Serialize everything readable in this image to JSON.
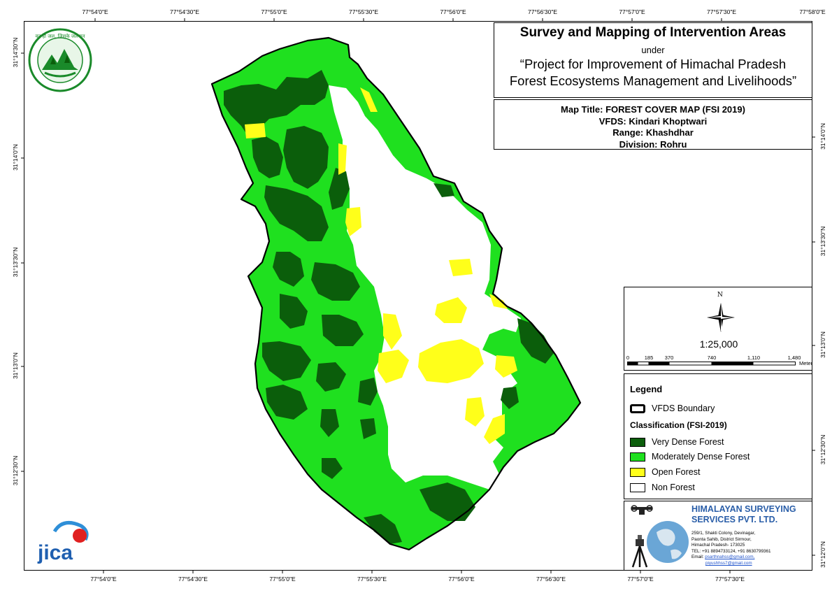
{
  "ticks": {
    "top": [
      "77°54'0\"E",
      "77°54'30\"E",
      "77°55'0\"E",
      "77°55'30\"E",
      "77°56'0\"E",
      "77°56'30\"E",
      "77°57'0\"E",
      "77°57'30\"E",
      "77°58'0\"E"
    ],
    "bottom": [
      "77°54'0\"E",
      "77°54'30\"E",
      "77°55'0\"E",
      "77°55'30\"E",
      "77°56'0\"E",
      "77°56'30\"E",
      "77°57'0\"E",
      "77°57'30\"E"
    ],
    "left": [
      "31°14'30\"N",
      "31°14'0\"N",
      "31°13'30\"N",
      "31°13'0\"N",
      "31°12'30\"N"
    ],
    "right": [
      "31°14'0\"N",
      "31°13'30\"N",
      "31°13'0\"N",
      "31°12'30\"N",
      "31°12'0\"N"
    ]
  },
  "title": {
    "main": "Survey and Mapping of Intervention Areas",
    "under": "under",
    "project_line1": "“Project for Improvement of Himachal Pradesh",
    "project_line2": "Forest Ecosystems Management and Livelihoods”"
  },
  "info": {
    "map_title": "Map Title: FOREST COVER MAP (FSI 2019)",
    "vfds": "VFDS: Kindari Khoptwari",
    "range": "Range: Khashdhar",
    "division": "Division: Rohru"
  },
  "north_label": "N",
  "scale": {
    "ratio": "1:25,000",
    "labels": [
      "0",
      "185",
      "370",
      "740",
      "1,110",
      "1,480"
    ],
    "unit": "Meters"
  },
  "legend": {
    "title": "Legend",
    "boundary_label": "VFDS Boundary",
    "classification_title": "Classification (FSI-2019)",
    "classes": [
      {
        "label": "Very Dense Forest",
        "color": "#0b5e0b"
      },
      {
        "label": "Moderately Dense Forest",
        "color": "#1fe01f"
      },
      {
        "label": "Open Forest",
        "color": "#ffff1a"
      },
      {
        "label": "Non Forest",
        "color": "#ffffff"
      }
    ]
  },
  "company": {
    "name_line1": "HIMALAYAN SURVEYING",
    "name_line2": "SERVICES PVT. LTD.",
    "addr1": "259/1, Shakti Colony, Devinagar,",
    "addr2": "Paonta Sahib, District Sirmour,",
    "addr3": "Himachal Pradesh- 173025",
    "tel": "TEL: +91 8894733124, +91 8630799361",
    "email_label": "Email: ",
    "email1": "psarthnahss@gmail.com,",
    "email2": "piyushhss7@gmail.com"
  },
  "logos": {
    "forest_dept_text": "वन ही जल, जिसके जलपान",
    "jica_text": "jica"
  },
  "colors": {
    "very_dense": "#0b5e0b",
    "moderately_dense": "#1fe01f",
    "open": "#ffff1a",
    "non_forest": "#ffffff",
    "company_blue": "#2a5ea8"
  }
}
